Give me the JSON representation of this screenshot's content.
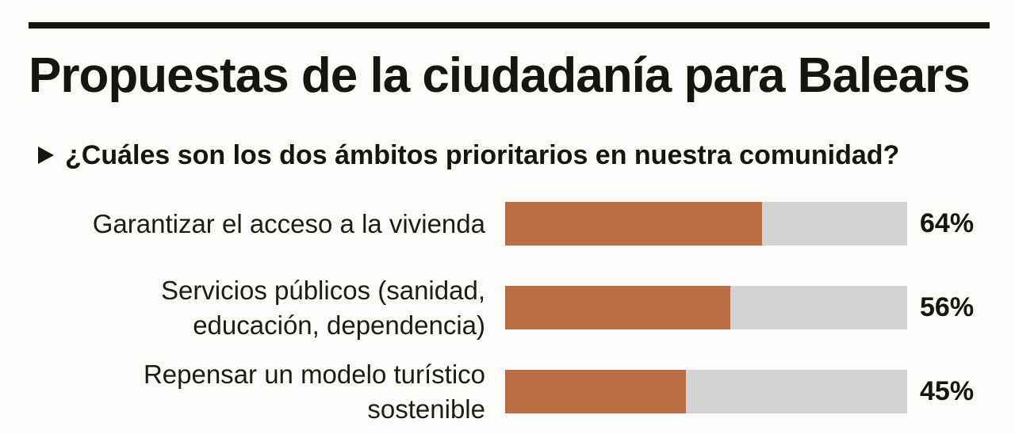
{
  "title": "Propuestas de la ciudadanía para Balears",
  "question": "¿Cuáles son los dos ámbitos prioritarios en nuestra comunidad?",
  "colors": {
    "bar_fill": "#b96f41",
    "bar_track": "#d4d2d0",
    "text": "#16160f"
  },
  "chart_data": {
    "type": "bar",
    "orientation": "horizontal",
    "title": "Propuestas de la ciudadanía para Balears",
    "subtitle": "¿Cuáles son los dos ámbitos prioritarios en nuestra comunidad?",
    "categories": [
      [
        "Garantizar el acceso a la vivienda"
      ],
      [
        "Servicios públicos (sanidad,",
        "educación, dependencia)"
      ],
      [
        "Repensar un modelo turístico",
        "sostenible"
      ]
    ],
    "values": [
      64,
      56,
      45
    ],
    "value_labels": [
      "64%",
      "56%",
      "45%"
    ],
    "unit": "%",
    "xlim": [
      0,
      100
    ],
    "grid": false
  }
}
